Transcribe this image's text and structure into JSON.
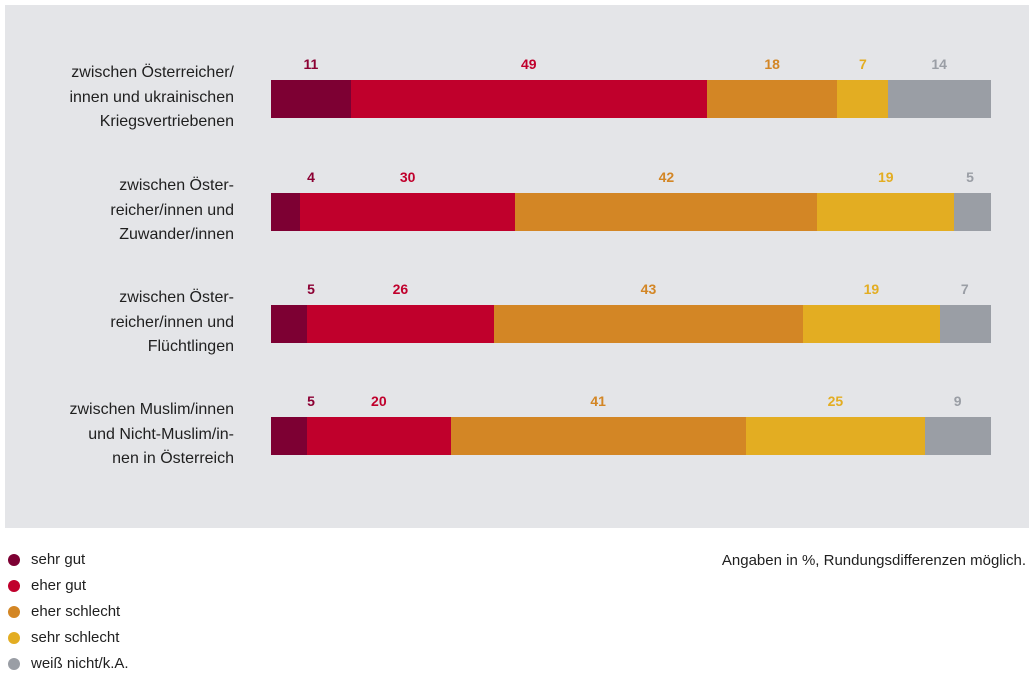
{
  "chart_data": {
    "type": "bar",
    "orientation": "horizontal",
    "stacked": true,
    "percent": true,
    "categories": [
      "zwischen Österreicher/\ninnen und ukrainischen\nKriegsvertriebenen",
      "zwischen Öster-\nreicher/innen und\nZuwander/innen",
      "zwischen Öster-\nreicher/innen und\nFlüchtlingen",
      "zwischen Muslim/innen\nund Nicht-Muslim/in-\nnen in Österreich"
    ],
    "series": [
      {
        "name": "sehr gut",
        "color": "#7d0033",
        "values": [
          11,
          4,
          5,
          5
        ]
      },
      {
        "name": "eher gut",
        "color": "#c0002c",
        "values": [
          49,
          30,
          26,
          20
        ]
      },
      {
        "name": "eher schlecht",
        "color": "#d38625",
        "values": [
          18,
          42,
          43,
          41
        ]
      },
      {
        "name": "sehr schlecht",
        "color": "#e3ad22",
        "values": [
          7,
          19,
          19,
          25
        ]
      },
      {
        "name": "weiß nicht/k.A.",
        "color": "#9a9ea5",
        "values": [
          14,
          5,
          7,
          9
        ]
      }
    ],
    "label_colors": [
      "#8c0033",
      "#c0002c",
      "#d38625",
      "#e3ad22",
      "#9a9ea5"
    ],
    "legend_position": "bottom-left",
    "note": "Angaben in %,\nRundungsdifferenzen möglich.",
    "grid": false
  }
}
